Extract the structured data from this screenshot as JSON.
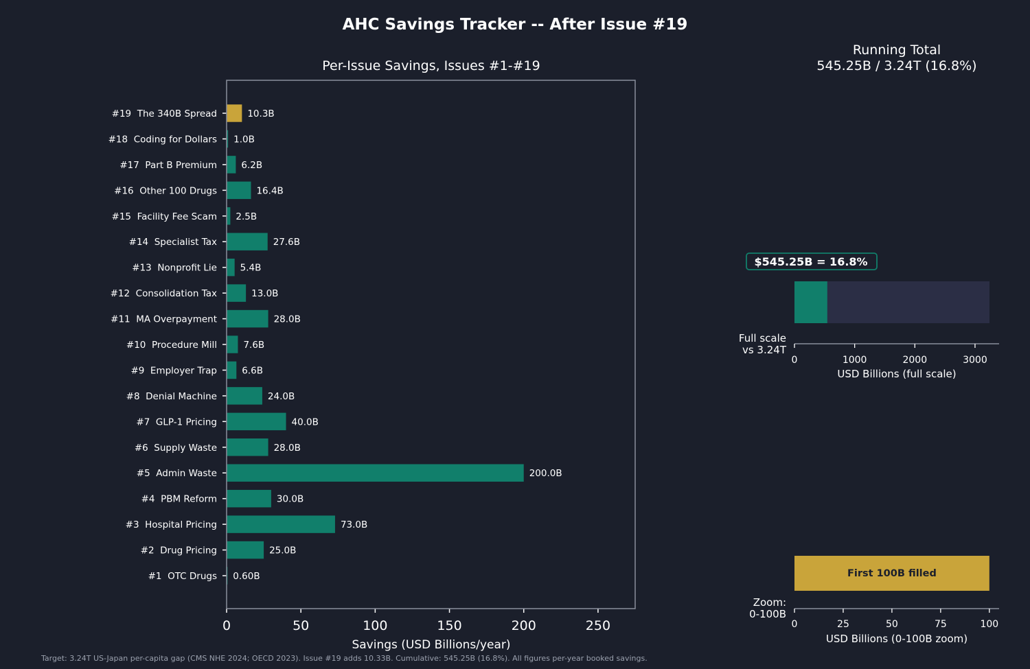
{
  "title": "AHC Savings Tracker -- After Issue #19",
  "footnote": "Target: 3.24T US-Japan per-capita gap (CMS NHE 2024; OECD 2023). Issue #19 adds 10.33B. Cumulative: 545.25B (16.8%). All figures per-year booked savings.",
  "colors": {
    "background": "#1b1f2b",
    "bar": "#117f6b",
    "highlight": "#c9a43a",
    "remainder": "#2b2e45",
    "frame": "#8a8f9c",
    "text": "#ffffff"
  },
  "chart_data": [
    {
      "type": "bar",
      "orientation": "horizontal",
      "title": "Per-Issue Savings, Issues #1-#19",
      "xlabel": "Savings (USD Billions/year)",
      "ylabel": "",
      "xlim": [
        0,
        275
      ],
      "xticks": [
        0,
        50,
        100,
        150,
        200,
        250
      ],
      "grid": false,
      "highlight_category": "#19  The 340B Spread",
      "categories": [
        "#1  OTC Drugs",
        "#2  Drug Pricing",
        "#3  Hospital Pricing",
        "#4  PBM Reform",
        "#5  Admin Waste",
        "#6  Supply Waste",
        "#7  GLP-1 Pricing",
        "#8  Denial Machine",
        "#9  Employer Trap",
        "#10  Procedure Mill",
        "#11  MA Overpayment",
        "#12  Consolidation Tax",
        "#13  Nonprofit Lie",
        "#14  Specialist Tax",
        "#15  Facility Fee Scam",
        "#16  Other 100 Drugs",
        "#17  Part B Premium",
        "#18  Coding for Dollars",
        "#19  The 340B Spread"
      ],
      "values": [
        0.6,
        25.0,
        73.0,
        30.0,
        200.0,
        28.0,
        40.0,
        24.0,
        6.6,
        7.6,
        28.0,
        13.0,
        5.4,
        27.6,
        2.5,
        16.4,
        6.2,
        1.0,
        10.33
      ],
      "value_labels": [
        "0.60B",
        "25.0B",
        "73.0B",
        "30.0B",
        "200.0B",
        "28.0B",
        "40.0B",
        "24.0B",
        "6.6B",
        "7.6B",
        "28.0B",
        "13.0B",
        "5.4B",
        "27.6B",
        "2.5B",
        "16.4B",
        "6.2B",
        "1.0B",
        "10.3B"
      ]
    },
    {
      "type": "bar",
      "orientation": "horizontal",
      "title": "Running Total\n545.25B / 3.24T (16.8%)",
      "xlabel": "USD Billions (full scale)",
      "ylabel": "Full scale\nvs 3.24T",
      "xlim": [
        0,
        3400
      ],
      "xticks": [
        0,
        1000,
        2000,
        3000
      ],
      "cumulative": 545.25,
      "target": 3240,
      "annotation": "$545.25B = 16.8%"
    },
    {
      "type": "bar",
      "orientation": "horizontal",
      "title": "",
      "xlabel": "USD Billions (0-100B zoom)",
      "ylabel": "Zoom:\n0-100B",
      "xlim": [
        0,
        105
      ],
      "xticks": [
        0,
        25,
        50,
        75,
        100
      ],
      "fill_value": 100,
      "fill_label": "First 100B filled"
    }
  ]
}
